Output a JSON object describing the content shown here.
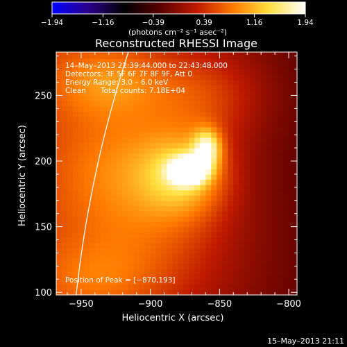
{
  "chart_data": {
    "type": "heatmap",
    "title": "Reconstructed RHESSI Image",
    "xlabel": "Heliocentric X (arcsec)",
    "ylabel": "Heliocentric Y (arcsec)",
    "xlim": [
      -968,
      -794
    ],
    "ylim": [
      98,
      283
    ],
    "x_ticks": [
      -950,
      -900,
      -850,
      -800
    ],
    "x_tick_labels": [
      "−950",
      "−900",
      "−850",
      "−800"
    ],
    "y_ticks": [
      100,
      150,
      200,
      250
    ],
    "y_tick_labels": [
      "100",
      "150",
      "200",
      "250"
    ],
    "grid": false,
    "colorbar": {
      "range": [
        -1.94,
        1.94
      ],
      "ticks": [
        -1.94,
        -1.16,
        -0.39,
        0.39,
        1.16,
        1.94
      ],
      "tick_labels": [
        "−1.94",
        "−1.16",
        "−0.39",
        "0.39",
        "1.16",
        "1.94"
      ],
      "unit_label": "(photons cm⁻² s⁻¹ asec⁻²)",
      "colormap": [
        "#0000ff",
        "#2a008c",
        "#000000",
        "#5a0000",
        "#c01a00",
        "#ff7a00",
        "#ffe040",
        "#ffffff"
      ]
    },
    "annotations": {
      "time_range": "14–May–2013 22:39:44.000 to 22:43:48.000",
      "detectors": "Detectors: 3F 5F 6F 7F 8F 9F, Att 0",
      "energy": "Energy Range: 3.0 – 6.0 keV",
      "method": "Clean",
      "total_counts": "Total counts: 7.18E+04",
      "peak": "Position of Peak = [−870,193]"
    },
    "peak_position": [
      -870,
      193
    ],
    "peak_value": 1.94,
    "sources": [
      {
        "x": -872,
        "y": 193,
        "peak": 1.94,
        "sx": 9,
        "sy": 7
      },
      {
        "x": -859,
        "y": 210,
        "peak": 1.25,
        "sx": 7,
        "sy": 10
      },
      {
        "x": -875,
        "y": 190,
        "peak": 1.0,
        "sx": 22,
        "sy": 22
      },
      {
        "x": -930,
        "y": 262,
        "peak": 0.65,
        "sx": 30,
        "sy": 20
      },
      {
        "x": -920,
        "y": 200,
        "peak": 0.55,
        "sx": 35,
        "sy": 35
      },
      {
        "x": -860,
        "y": 250,
        "peak": 0.5,
        "sx": 30,
        "sy": 25
      },
      {
        "x": -900,
        "y": 140,
        "peak": 0.45,
        "sx": 45,
        "sy": 40
      },
      {
        "x": -940,
        "y": 110,
        "peak": 0.35,
        "sx": 30,
        "sy": 20
      }
    ],
    "background_gradient": {
      "left": 0.35,
      "right": -0.22
    },
    "limb": {
      "center": [
        0,
        0
      ],
      "radius_arcsec": 958.6
    }
  },
  "footer_timestamp": "15–May–2013 21:11"
}
